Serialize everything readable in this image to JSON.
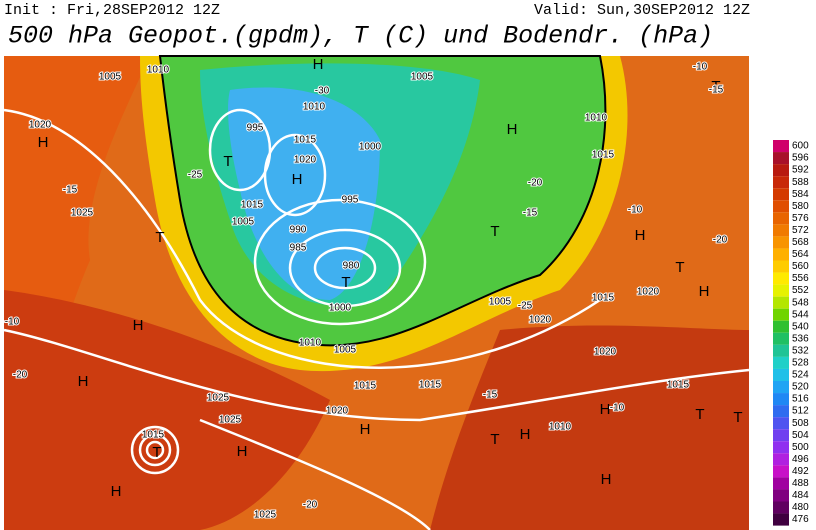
{
  "header": {
    "init": "Init : Fri,28SEP2012 12Z",
    "valid": "Valid: Sun,30SEP2012 12Z",
    "title": "500 hPa Geopot.(gpdm), T (C) und Bodendr. (hPa)"
  },
  "colorbar": {
    "labels": [
      "600",
      "596",
      "592",
      "588",
      "584",
      "580",
      "576",
      "572",
      "568",
      "564",
      "560",
      "556",
      "552",
      "548",
      "544",
      "540",
      "536",
      "532",
      "528",
      "524",
      "520",
      "516",
      "512",
      "508",
      "504",
      "500",
      "496",
      "492",
      "488",
      "484",
      "480",
      "476"
    ],
    "colors": [
      "#d0006a",
      "#a8102a",
      "#b81a10",
      "#c82808",
      "#d43a00",
      "#e04e00",
      "#e86400",
      "#f07a00",
      "#f89400",
      "#ffb000",
      "#ffcc00",
      "#ffea00",
      "#e6f200",
      "#b4e600",
      "#70d400",
      "#30c030",
      "#20c064",
      "#20c496",
      "#20d0c8",
      "#20c0e8",
      "#20a4f4",
      "#2088f4",
      "#306cf0",
      "#5054f0",
      "#7040f0",
      "#9030f0",
      "#b020e0",
      "#c810c8",
      "#a000a0",
      "#800080",
      "#600060",
      "#400040"
    ]
  },
  "map_labels": [
    "H",
    "T",
    "H",
    "H",
    "T",
    "T",
    "H",
    "T",
    "H",
    "H",
    "T",
    "T",
    "H",
    "H",
    "H",
    "H",
    "H",
    "T",
    "T",
    "H",
    "T",
    "T",
    "H",
    "H",
    "1005",
    "1010",
    "1005",
    "1010",
    "1020",
    "995",
    "1015",
    "1020",
    "1000",
    "1005",
    "990",
    "985",
    "980",
    "995",
    "1010",
    "1015",
    "1000",
    "1005",
    "1025",
    "1015",
    "1020",
    "1025",
    "1025",
    "1020",
    "1015",
    "1020",
    "1015",
    "1015",
    "1010",
    "1005",
    "1020",
    "1015",
    "1015",
    "1010",
    "1025",
    "-30",
    "-25",
    "-15",
    "-10",
    "-20",
    "-25",
    "-15",
    "-10",
    "-20",
    "-15",
    "-15",
    "-20",
    "-10",
    "-10",
    "-20"
  ]
}
